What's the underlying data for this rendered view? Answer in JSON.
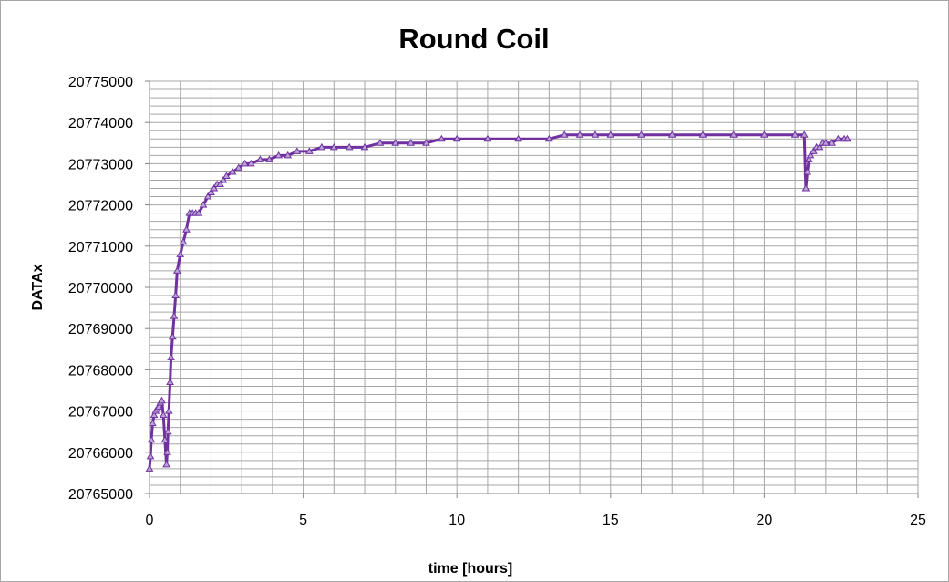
{
  "chart_data": {
    "type": "scatter",
    "title": "Round Coil",
    "xlabel": "time [hours]",
    "ylabel": "DATAx",
    "xlim": [
      0,
      25
    ],
    "ylim": [
      20765000,
      20775000
    ],
    "x_ticks": [
      "0",
      "5",
      "10",
      "15",
      "20",
      "25"
    ],
    "y_ticks": [
      "20765000",
      "20766000",
      "20767000",
      "20768000",
      "20769000",
      "20770000",
      "20771000",
      "20772000",
      "20773000",
      "20774000",
      "20775000"
    ],
    "grid": true,
    "legend": "none",
    "marker": "triangle",
    "colors": {
      "series": "#7030a0",
      "grid": "#a6a6a6",
      "axis": "#868686"
    },
    "series": [
      {
        "x": [
          0.0,
          0.03,
          0.06,
          0.1,
          0.15,
          0.2,
          0.25,
          0.3,
          0.35,
          0.4,
          0.45,
          0.5,
          0.55,
          0.58,
          0.6,
          0.63,
          0.67,
          0.7,
          0.75,
          0.8,
          0.85,
          0.9,
          1.0,
          1.1,
          1.2,
          1.3,
          1.4,
          1.5,
          1.6,
          1.75,
          1.9,
          2.0,
          2.1,
          2.2,
          2.3,
          2.4,
          2.5,
          2.7,
          2.9,
          3.1,
          3.3,
          3.6,
          3.9,
          4.2,
          4.5,
          4.8,
          5.2,
          5.6,
          6.0,
          6.5,
          7.0,
          7.5,
          8.0,
          8.5,
          9.0,
          9.5,
          10.0,
          11.0,
          12.0,
          13.0,
          13.5,
          14.0,
          14.5,
          15.0,
          16.0,
          17.0,
          18.0,
          19.0,
          20.0,
          21.0,
          21.3,
          21.35,
          21.4,
          21.45,
          21.5,
          21.6,
          21.7,
          21.8,
          21.9,
          22.0,
          22.2,
          22.4,
          22.6,
          22.7
        ],
        "y": [
          20765600,
          20765900,
          20766300,
          20766700,
          20766900,
          20767000,
          20767050,
          20767100,
          20767200,
          20767250,
          20766900,
          20766300,
          20765700,
          20766000,
          20766500,
          20767000,
          20767700,
          20768300,
          20768800,
          20769300,
          20769800,
          20770400,
          20770800,
          20771100,
          20771400,
          20771800,
          20771800,
          20771800,
          20771800,
          20772000,
          20772200,
          20772300,
          20772400,
          20772500,
          20772500,
          20772600,
          20772700,
          20772800,
          20772900,
          20773000,
          20773000,
          20773100,
          20773100,
          20773200,
          20773200,
          20773300,
          20773300,
          20773400,
          20773400,
          20773400,
          20773400,
          20773500,
          20773500,
          20773500,
          20773500,
          20773600,
          20773600,
          20773600,
          20773600,
          20773600,
          20773700,
          20773700,
          20773700,
          20773700,
          20773700,
          20773700,
          20773700,
          20773700,
          20773700,
          20773700,
          20773700,
          20772400,
          20772800,
          20773100,
          20773200,
          20773300,
          20773400,
          20773400,
          20773500,
          20773500,
          20773500,
          20773600,
          20773600,
          20773600
        ]
      }
    ]
  }
}
